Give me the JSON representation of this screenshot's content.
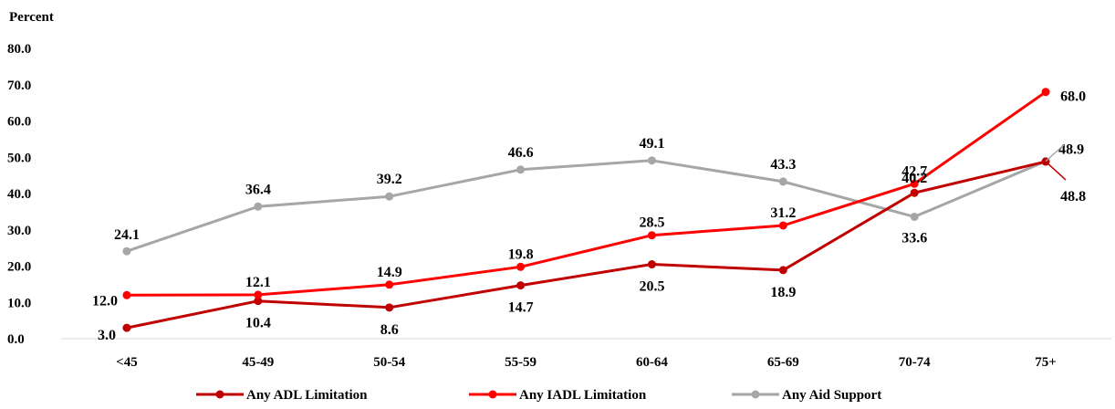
{
  "chart_data": {
    "type": "line",
    "title": "",
    "ylabel": "Percent",
    "xlabel": "",
    "ylim": [
      0,
      80
    ],
    "yticks": [
      "0.0",
      "10.0",
      "20.0",
      "30.0",
      "40.0",
      "50.0",
      "60.0",
      "70.0",
      "80.0"
    ],
    "categories": [
      "<45",
      "45-49",
      "50-54",
      "55-59",
      "60-64",
      "65-69",
      "70-74",
      "75+"
    ],
    "grid": false,
    "legend_position": "bottom",
    "series": [
      {
        "name": "Any ADL Limitation",
        "color": "#c00000",
        "values": [
          3.0,
          10.4,
          8.6,
          14.7,
          20.5,
          18.9,
          40.2,
          48.8
        ]
      },
      {
        "name": "Any IADL Limitation",
        "color": "#ff0000",
        "values": [
          12.0,
          12.1,
          14.9,
          19.8,
          28.5,
          31.2,
          42.7,
          68.0
        ]
      },
      {
        "name": "Any Aid Support",
        "color": "#a6a6a6",
        "values": [
          24.1,
          36.4,
          39.2,
          46.6,
          49.1,
          43.3,
          33.6,
          48.9
        ]
      }
    ]
  }
}
